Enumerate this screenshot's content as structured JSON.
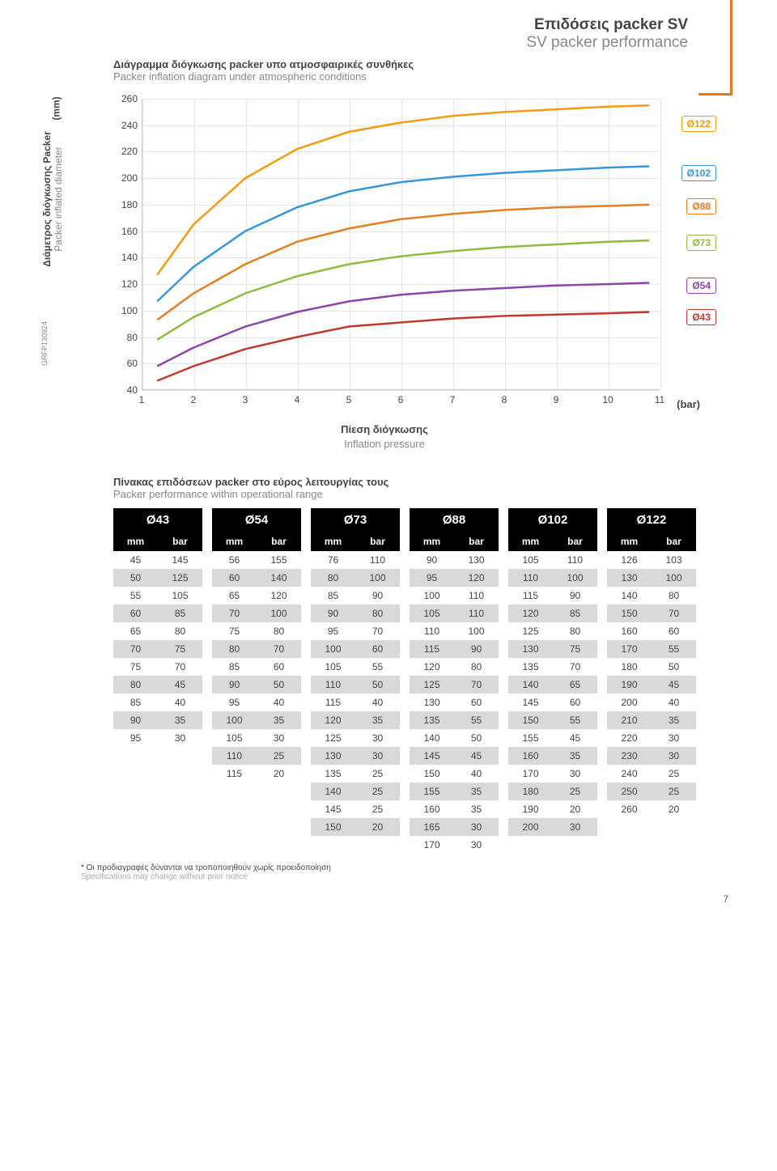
{
  "header": {
    "greek": "Επιδόσεις packer SV",
    "eng": "SV packer performance"
  },
  "subheader": {
    "greek": "Διάγραμμα διόγκωσης packer υπο ατμοσφαιρικές συνθήκες",
    "eng": "Packer inflation diagram under atmospheric conditions"
  },
  "chart": {
    "ylabel_greek": "Διάμετρος διόγκωσης Packer",
    "ylabel_eng": "Packer inflated diameter",
    "y_unit": "(mm)",
    "xlabel_greek": "Πίεση διόγκωσης",
    "xlabel_eng": "Inflation pressure",
    "x_unit": "(bar)",
    "xlim": [
      1,
      11
    ],
    "ylim": [
      40,
      260
    ],
    "ytick_step": 20,
    "xtick_step": 1,
    "grid_color": "#e5e5e5",
    "background": "#ffffff",
    "series": [
      {
        "name": "Ø122",
        "color": "#f39c12",
        "badge_border": "#f39c12",
        "values": [
          [
            1.3,
            127
          ],
          [
            2,
            165
          ],
          [
            3,
            200
          ],
          [
            4,
            222
          ],
          [
            5,
            235
          ],
          [
            6,
            242
          ],
          [
            7,
            247
          ],
          [
            8,
            250
          ],
          [
            9,
            252
          ],
          [
            10,
            254
          ],
          [
            10.8,
            255
          ]
        ],
        "badge_y": 241
      },
      {
        "name": "Ø102",
        "color": "#3498db",
        "badge_border": "#3498db",
        "values": [
          [
            1.3,
            107
          ],
          [
            2,
            133
          ],
          [
            3,
            160
          ],
          [
            4,
            178
          ],
          [
            5,
            190
          ],
          [
            6,
            197
          ],
          [
            7,
            201
          ],
          [
            8,
            204
          ],
          [
            9,
            206
          ],
          [
            10,
            208
          ],
          [
            10.8,
            209
          ]
        ],
        "badge_y": 204
      },
      {
        "name": "Ø88",
        "color": "#e67e22",
        "badge_border": "#e67e22",
        "values": [
          [
            1.3,
            93
          ],
          [
            2,
            113
          ],
          [
            3,
            135
          ],
          [
            4,
            152
          ],
          [
            5,
            162
          ],
          [
            6,
            169
          ],
          [
            7,
            173
          ],
          [
            8,
            176
          ],
          [
            9,
            178
          ],
          [
            10,
            179
          ],
          [
            10.8,
            180
          ]
        ],
        "badge_y": 179
      },
      {
        "name": "Ø73",
        "color": "#8fbc3f",
        "badge_border": "#8fbc3f",
        "values": [
          [
            1.3,
            78
          ],
          [
            2,
            95
          ],
          [
            3,
            113
          ],
          [
            4,
            126
          ],
          [
            5,
            135
          ],
          [
            6,
            141
          ],
          [
            7,
            145
          ],
          [
            8,
            148
          ],
          [
            9,
            150
          ],
          [
            10,
            152
          ],
          [
            10.8,
            153
          ]
        ],
        "badge_y": 151
      },
      {
        "name": "Ø54",
        "color": "#8e44ad",
        "badge_border": "#8e44ad",
        "values": [
          [
            1.3,
            58
          ],
          [
            2,
            72
          ],
          [
            3,
            88
          ],
          [
            4,
            99
          ],
          [
            5,
            107
          ],
          [
            6,
            112
          ],
          [
            7,
            115
          ],
          [
            8,
            117
          ],
          [
            9,
            119
          ],
          [
            10,
            120
          ],
          [
            10.8,
            121
          ]
        ],
        "badge_y": 119
      },
      {
        "name": "Ø43",
        "color": "#c0392b",
        "badge_border": "#c0392b",
        "values": [
          [
            1.3,
            47
          ],
          [
            2,
            58
          ],
          [
            3,
            71
          ],
          [
            4,
            80
          ],
          [
            5,
            88
          ],
          [
            6,
            91
          ],
          [
            7,
            94
          ],
          [
            8,
            96
          ],
          [
            9,
            97
          ],
          [
            10,
            98
          ],
          [
            10.8,
            99
          ]
        ],
        "badge_y": 95
      }
    ],
    "code": "GRFP130924"
  },
  "tables_header": {
    "greek": "Πίνακας επιδόσεων packer στο εύρος λειτουργίας τους",
    "eng": "Packer performance within operational range"
  },
  "col_headers": [
    "mm",
    "bar"
  ],
  "tables": [
    {
      "title": "Ø43",
      "rows": [
        [
          45,
          145
        ],
        [
          50,
          125
        ],
        [
          55,
          105
        ],
        [
          60,
          85
        ],
        [
          65,
          80
        ],
        [
          70,
          75
        ],
        [
          75,
          70
        ],
        [
          80,
          45
        ],
        [
          85,
          40
        ],
        [
          90,
          35
        ],
        [
          95,
          30
        ]
      ]
    },
    {
      "title": "Ø54",
      "rows": [
        [
          56,
          155
        ],
        [
          60,
          140
        ],
        [
          65,
          120
        ],
        [
          70,
          100
        ],
        [
          75,
          80
        ],
        [
          80,
          70
        ],
        [
          85,
          60
        ],
        [
          90,
          50
        ],
        [
          95,
          40
        ],
        [
          100,
          35
        ],
        [
          105,
          30
        ],
        [
          110,
          25
        ],
        [
          115,
          20
        ]
      ]
    },
    {
      "title": "Ø73",
      "rows": [
        [
          76,
          110
        ],
        [
          80,
          100
        ],
        [
          85,
          90
        ],
        [
          90,
          80
        ],
        [
          95,
          70
        ],
        [
          100,
          60
        ],
        [
          105,
          55
        ],
        [
          110,
          50
        ],
        [
          115,
          40
        ],
        [
          120,
          35
        ],
        [
          125,
          30
        ],
        [
          130,
          30
        ],
        [
          135,
          25
        ],
        [
          140,
          25
        ],
        [
          145,
          25
        ],
        [
          150,
          20
        ]
      ]
    },
    {
      "title": "Ø88",
      "rows": [
        [
          90,
          130
        ],
        [
          95,
          120
        ],
        [
          100,
          110
        ],
        [
          105,
          110
        ],
        [
          110,
          100
        ],
        [
          115,
          90
        ],
        [
          120,
          80
        ],
        [
          125,
          70
        ],
        [
          130,
          60
        ],
        [
          135,
          55
        ],
        [
          140,
          50
        ],
        [
          145,
          45
        ],
        [
          150,
          40
        ],
        [
          155,
          35
        ],
        [
          160,
          35
        ],
        [
          165,
          30
        ],
        [
          170,
          30
        ]
      ]
    },
    {
      "title": "Ø102",
      "rows": [
        [
          105,
          110
        ],
        [
          110,
          100
        ],
        [
          115,
          90
        ],
        [
          120,
          85
        ],
        [
          125,
          80
        ],
        [
          130,
          75
        ],
        [
          135,
          70
        ],
        [
          140,
          65
        ],
        [
          145,
          60
        ],
        [
          150,
          55
        ],
        [
          155,
          45
        ],
        [
          160,
          35
        ],
        [
          170,
          30
        ],
        [
          180,
          25
        ],
        [
          190,
          20
        ],
        [
          200,
          30
        ]
      ]
    },
    {
      "title": "Ø122",
      "rows": [
        [
          126,
          103
        ],
        [
          130,
          100
        ],
        [
          140,
          80
        ],
        [
          150,
          70
        ],
        [
          160,
          60
        ],
        [
          170,
          55
        ],
        [
          180,
          50
        ],
        [
          190,
          45
        ],
        [
          200,
          40
        ],
        [
          210,
          35
        ],
        [
          220,
          30
        ],
        [
          230,
          30
        ],
        [
          240,
          25
        ],
        [
          250,
          25
        ],
        [
          260,
          20
        ]
      ]
    }
  ],
  "footnote": {
    "greek": "* Οι προδιαγραφές δύνανται να τροποποιηθούν χωρίς προειδοποίηση",
    "eng": "Specifications may change without prior notice"
  },
  "page_number": "7"
}
